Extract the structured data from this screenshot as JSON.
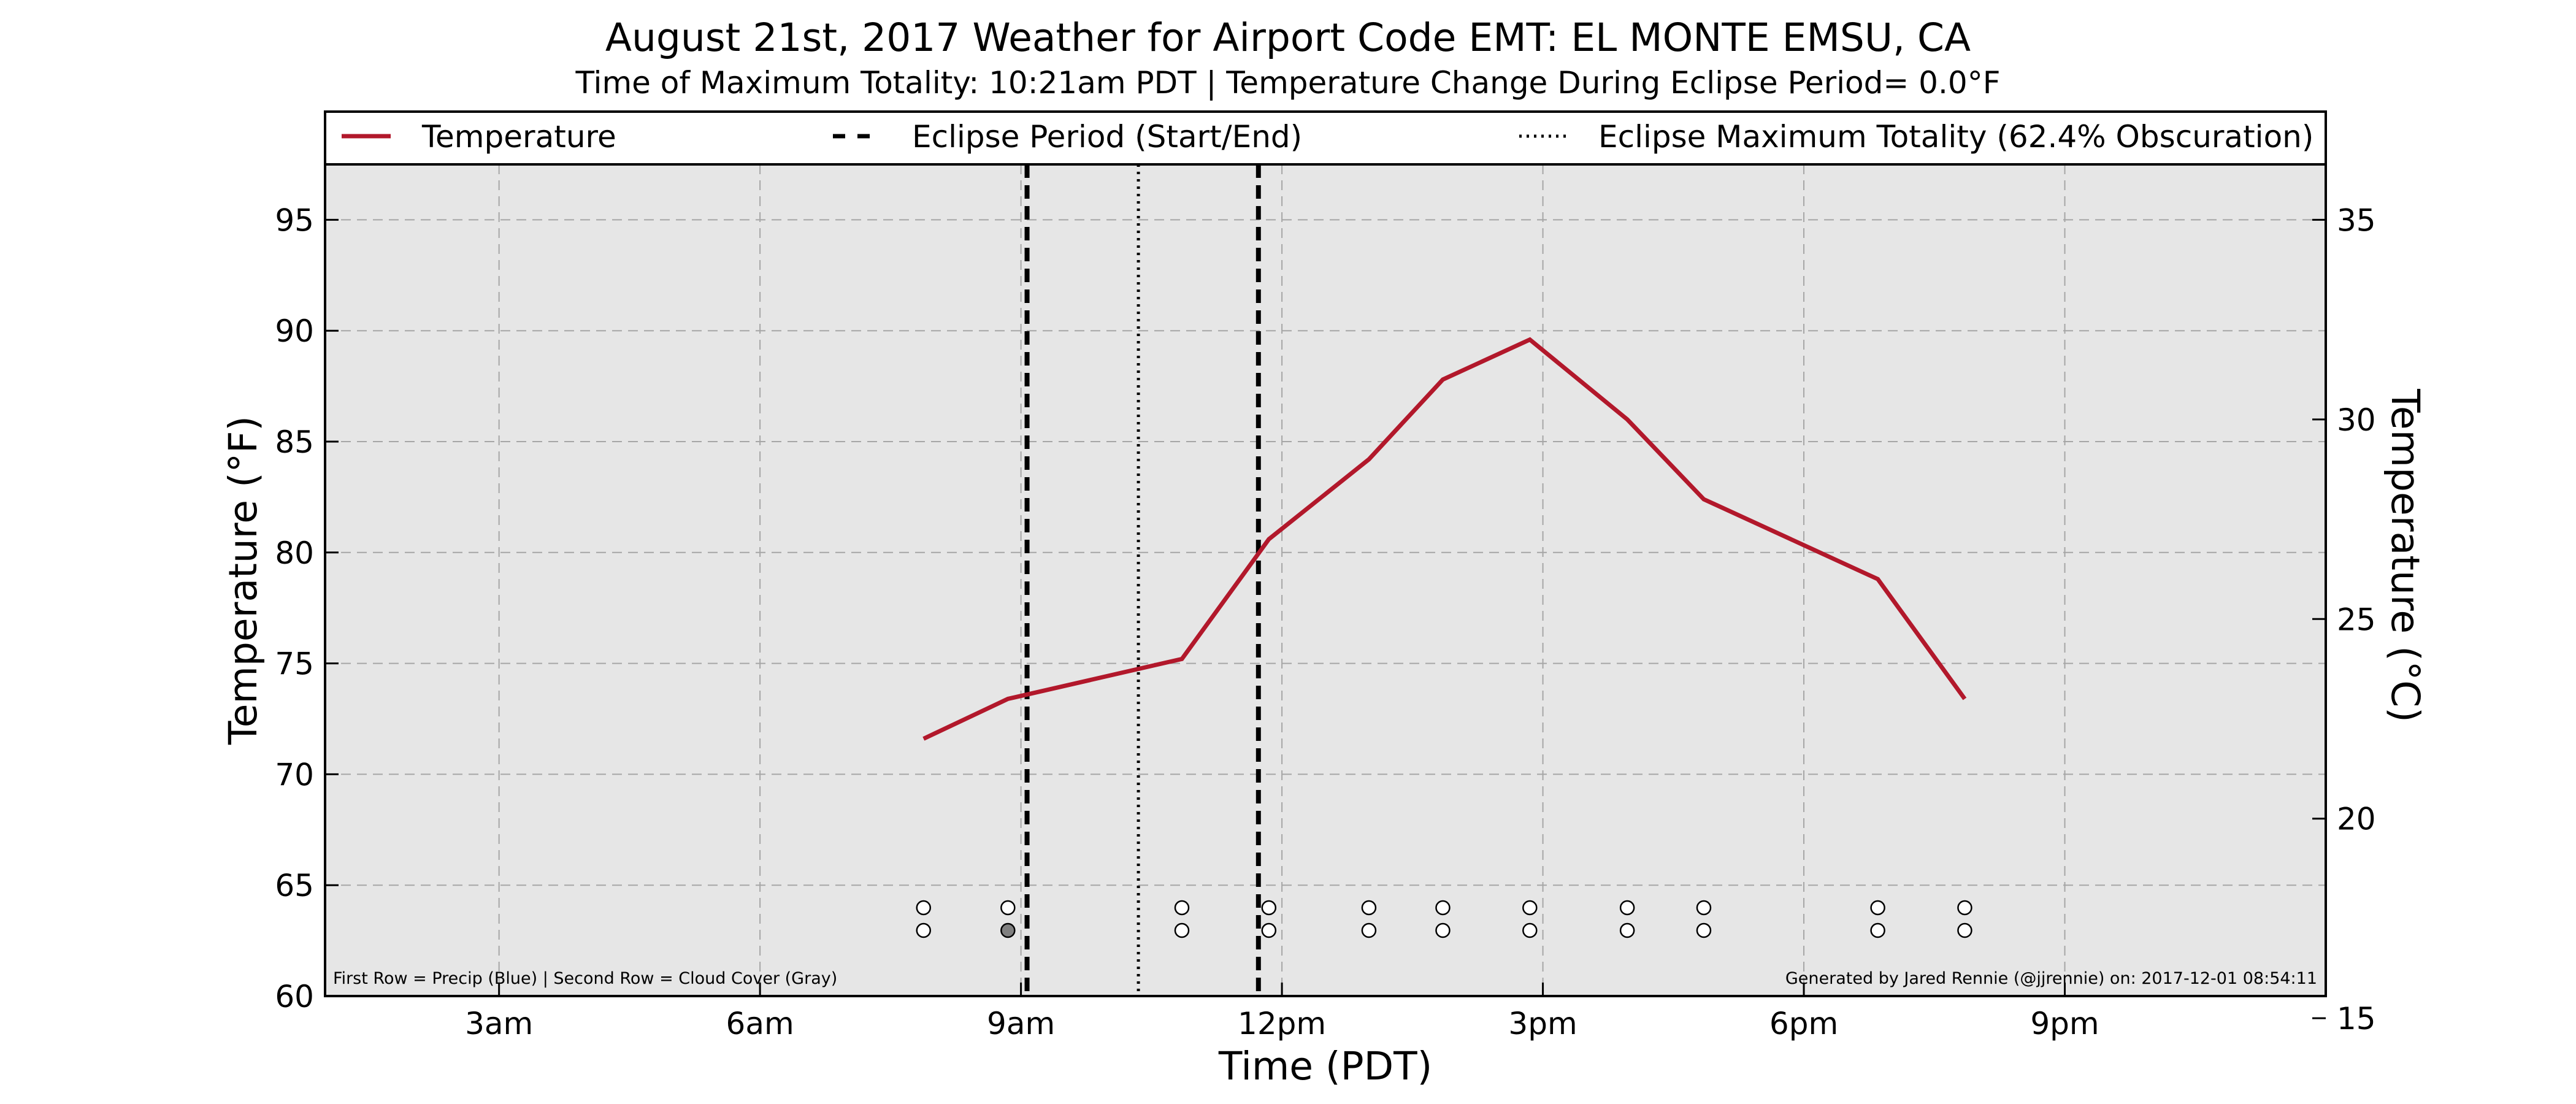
{
  "chart_data": {
    "type": "line",
    "title": "August 21st, 2017 Weather for Airport Code EMT: EL MONTE EMSU, CA",
    "subtitle": "Time of Maximum Totality: 10:21am PDT | Temperature Change During Eclipse Period= 0.0°F",
    "xlabel": "Time (PDT)",
    "ylabel": "Temperature (°F)",
    "ylabel_right": "Temperature (°C)",
    "x_ticks": [
      "3am",
      "6am",
      "9am",
      "12pm",
      "3pm",
      "6pm",
      "9pm"
    ],
    "x_tick_hours": [
      3,
      6,
      9,
      12,
      15,
      18,
      21
    ],
    "xlim_hours": [
      1,
      24
    ],
    "ylim": [
      60,
      97.5
    ],
    "y_ticks": [
      60,
      65,
      70,
      75,
      80,
      85,
      90,
      95
    ],
    "y2_ticks": [
      15,
      20,
      25,
      30,
      35
    ],
    "grid": true,
    "legend_position": "top",
    "legend": [
      {
        "label": "Temperature",
        "style": "solid",
        "color": "#b2182b"
      },
      {
        "label": "Eclipse Period (Start/End)",
        "style": "dashed",
        "color": "#000000"
      },
      {
        "label": "Eclipse Maximum Totality (62.4% Obscuration)",
        "style": "dotted",
        "color": "#000000"
      }
    ],
    "series": [
      {
        "name": "Temperature",
        "color": "#b2182b",
        "x_time": [
          "7:53am",
          "8:53am",
          "10:53am",
          "11:53am",
          "12:53pm",
          "1:53pm",
          "2:53pm",
          "3:53pm",
          "4:53pm",
          "6:53pm",
          "7:53pm"
        ],
        "x_hours": [
          7.88,
          8.85,
          10.85,
          11.85,
          13.0,
          13.85,
          14.85,
          15.97,
          16.85,
          18.85,
          19.85
        ],
        "values": [
          71.6,
          73.4,
          75.2,
          80.6,
          84.2,
          87.8,
          89.6,
          86.0,
          82.4,
          78.8,
          73.4
        ]
      }
    ],
    "eclipse_start_hours": 9.07,
    "eclipse_end_hours": 11.73,
    "eclipse_max_hours": 10.35,
    "precip_row": {
      "x_hours": [
        7.88,
        8.85,
        10.85,
        11.85,
        13.0,
        13.85,
        14.85,
        15.97,
        16.85,
        18.85,
        19.85
      ],
      "filled": [
        false,
        false,
        false,
        false,
        false,
        false,
        false,
        false,
        false,
        false,
        false
      ]
    },
    "cloud_row": {
      "x_hours": [
        7.88,
        8.85,
        10.85,
        11.85,
        13.0,
        13.85,
        14.85,
        15.97,
        16.85,
        18.85,
        19.85
      ],
      "filled": [
        false,
        true,
        false,
        false,
        false,
        false,
        false,
        false,
        false,
        false,
        false
      ]
    },
    "note_left": "First Row = Precip (Blue) | Second Row = Cloud Cover (Gray)",
    "note_right": "Generated by Jared Rennie (@jjrennie) on: 2017-12-01 08:54:11"
  }
}
